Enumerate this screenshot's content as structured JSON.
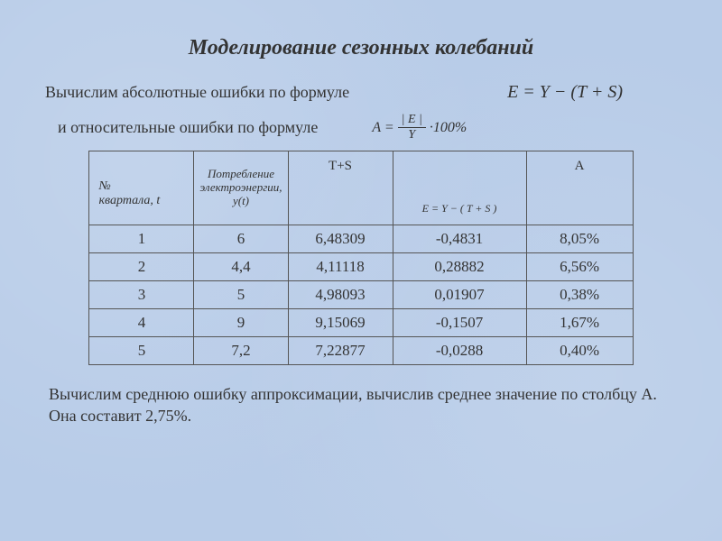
{
  "title": "Моделирование сезонных колебаний",
  "line1_text": "Вычислим абсолютные ошибки по формуле",
  "formula1": "E = Y − (T + S)",
  "line2_text": "и относительные ошибки по формуле",
  "formula2_lhs": "A =",
  "formula2_num": "| E |",
  "formula2_den": "Y",
  "formula2_rhs": "·100%",
  "table": {
    "headers": {
      "col1_line1": "№",
      "col1_line2": "квартала, t",
      "col2": "Потребление электроэнергии, y(t)",
      "col3": "T+S",
      "col4": "E = Y − ( T + S )",
      "col5": "A"
    },
    "rows": [
      {
        "t": "1",
        "y": "6",
        "ts": "6,48309",
        "e": "-0,4831",
        "a": "8,05%"
      },
      {
        "t": "2",
        "y": "4,4",
        "ts": "4,11118",
        "e": "0,28882",
        "a": "6,56%"
      },
      {
        "t": "3",
        "y": "5",
        "ts": "4,98093",
        "e": "0,01907",
        "a": "0,38%"
      },
      {
        "t": "4",
        "y": "9",
        "ts": "9,15069",
        "e": "-0,1507",
        "a": "1,67%"
      },
      {
        "t": "5",
        "y": "7,2",
        "ts": "7,22877",
        "e": "-0,0288",
        "a": "0,40%"
      }
    ]
  },
  "bottom_text": "Вычислим среднюю ошибку аппроксимации, вычислив среднее значение по столбцу А. Она составит 2,75%.",
  "colors": {
    "background": "#b8cce8",
    "text": "#333333",
    "border": "#555555"
  },
  "fonts": {
    "title_size": 24,
    "body_size": 18,
    "cell_size": 17,
    "header_size": 14
  }
}
